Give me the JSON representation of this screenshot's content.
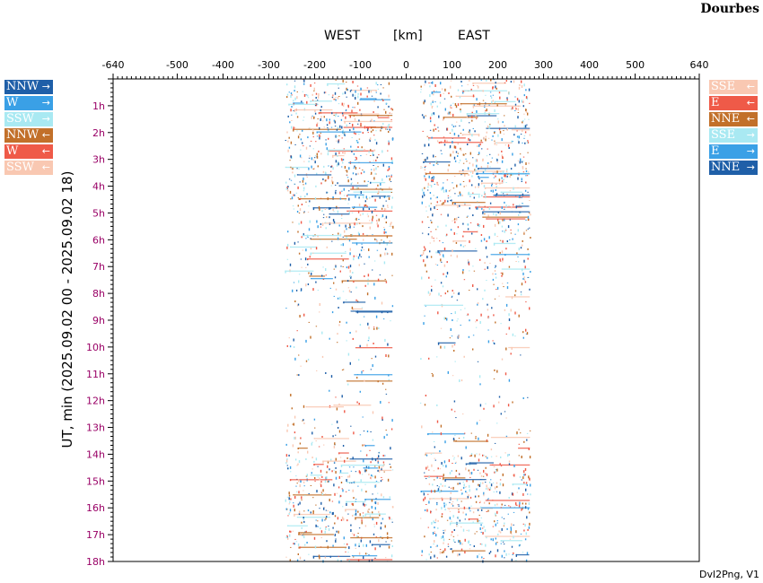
{
  "station": "Dourbes",
  "header": {
    "west": "WEST",
    "unit": "[km]",
    "east": "EAST"
  },
  "footer": "Dvl2Png, V1",
  "legend_left": [
    {
      "label": "NNW",
      "arrow": "→",
      "color": "#1f5fa8"
    },
    {
      "label": "W",
      "arrow": "→",
      "color": "#3aa0e6"
    },
    {
      "label": "SSW",
      "arrow": "→",
      "color": "#a9e9f2"
    },
    {
      "label": "NNW",
      "arrow": "←",
      "color": "#c2702a"
    },
    {
      "label": "W",
      "arrow": "←",
      "color": "#ef5a48"
    },
    {
      "label": "SSW",
      "arrow": "←",
      "color": "#f9c8b2"
    }
  ],
  "legend_right": [
    {
      "label": "SSE",
      "arrow": "←",
      "color": "#f9c8b2"
    },
    {
      "label": "E",
      "arrow": "←",
      "color": "#ef5a48"
    },
    {
      "label": "NNE",
      "arrow": "←",
      "color": "#c2702a"
    },
    {
      "label": "SSE",
      "arrow": "→",
      "color": "#a9e9f2"
    },
    {
      "label": "E",
      "arrow": "→",
      "color": "#3aa0e6"
    },
    {
      "label": "NNE",
      "arrow": "→",
      "color": "#1f5fa8"
    }
  ],
  "chart_data": {
    "type": "scatter",
    "title": "",
    "xlabel": "[km]",
    "ylabel": "UT, min (2025.09.02 00 - 2025.09.02 18)",
    "xlim": [
      -640,
      640
    ],
    "ylim": [
      0,
      18
    ],
    "x_ticks": [
      -640,
      -500,
      -400,
      -300,
      -200,
      -100,
      0,
      100,
      200,
      300,
      400,
      500,
      640
    ],
    "y_ticks": [
      "1h",
      "2h",
      "3h",
      "4h",
      "5h",
      "6h",
      "7h",
      "8h",
      "9h",
      "10h",
      "11h",
      "12h",
      "13h",
      "14h",
      "15h",
      "16h",
      "17h",
      "18h"
    ],
    "y_tick_color": "#990066",
    "data_extent_km": {
      "west": [
        -265,
        -30
      ],
      "east": [
        30,
        270
      ]
    },
    "density_per_hour": [
      0.9,
      0.95,
      0.85,
      1.0,
      0.9,
      0.75,
      0.55,
      0.45,
      0.3,
      0.28,
      0.15,
      0.12,
      0.2,
      0.35,
      0.85,
      0.9,
      0.85,
      0.7
    ],
    "series_colors": [
      "#1f5fa8",
      "#3aa0e6",
      "#a9e9f2",
      "#c2702a",
      "#ef5a48",
      "#f9c8b2"
    ]
  }
}
